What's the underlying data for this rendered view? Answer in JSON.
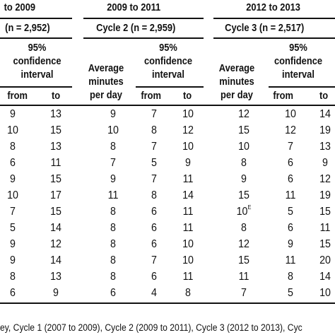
{
  "headers": {
    "period_1": "to 2009",
    "period_2": "2009 to 2011",
    "period_3": "2012 to 2013",
    "cycle_1": "n = 2,952)",
    "cycle_2": "Cycle 2 (n = 2,959)",
    "cycle_3": "Cycle 3 (n = 2,517)",
    "ci_line1": "95%",
    "ci_line2": "confidence",
    "ci_line3": "interval",
    "avg_line1": "Average",
    "avg_line2": "minutes",
    "avg_line3": "per day",
    "from": "from",
    "to": "to"
  },
  "rows": [
    [
      "9",
      "13",
      "9",
      "7",
      "10",
      "12",
      "10",
      "14"
    ],
    [
      "10",
      "15",
      "10",
      "8",
      "12",
      "15",
      "12",
      "19"
    ],
    [
      "8",
      "13",
      "8",
      "7",
      "10",
      "10",
      "7",
      "13"
    ],
    [
      "6",
      "11",
      "7",
      "5",
      "9",
      "8",
      "6",
      "9"
    ],
    [
      "9",
      "15",
      "9",
      "7",
      "11",
      "9",
      "6",
      "12"
    ],
    [
      "10",
      "17",
      "11",
      "8",
      "14",
      "15",
      "11",
      "19"
    ],
    [
      "7",
      "15",
      "8",
      "6",
      "11",
      "10",
      "5",
      "15"
    ],
    [
      "5",
      "14",
      "8",
      "6",
      "11",
      "8",
      "6",
      "11"
    ],
    [
      "9",
      "12",
      "8",
      "6",
      "10",
      "12",
      "9",
      "15"
    ],
    [
      "9",
      "14",
      "8",
      "7",
      "10",
      "15",
      "11",
      "20"
    ],
    [
      "8",
      "13",
      "8",
      "6",
      "11",
      "11",
      "8",
      "14"
    ],
    [
      "6",
      "9",
      "6",
      "4",
      "8",
      "7",
      "5",
      "10"
    ]
  ],
  "superscript_E": "E",
  "footnote": "ey, Cycle 1 (2007 to 2009), Cycle 2 (2009 to 2011), Cycle 3 (2012 to 2013), Cyc"
}
